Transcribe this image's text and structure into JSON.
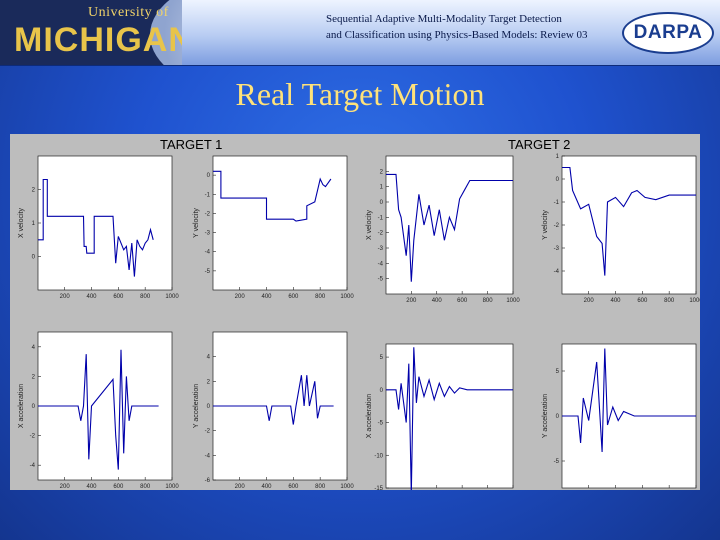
{
  "header": {
    "logo_university": "University of",
    "logo_name": "MICHIGAN",
    "title_line1": "Sequential Adaptive Multi-Modality Target Detection",
    "title_line2": "and Classification using Physics-Based Models: Review 03",
    "darpa": "DARPA"
  },
  "slide_title": "Real Target Motion",
  "colors": {
    "line": "#0000aa",
    "panel_bg": "#ffffff",
    "figure_bg": "#bdbdbd",
    "title": "#ffe27a"
  },
  "chart_data": [
    {
      "type": "line",
      "group": "TARGET 1",
      "ylabel": "X velocity",
      "xlim": [
        1,
        1000
      ],
      "ylim": [
        -1,
        3
      ],
      "xticks": [
        200,
        400,
        600,
        800,
        1000
      ],
      "yticks": [
        2,
        1,
        0
      ],
      "series": [
        {
          "values": [
            [
              1,
              0.5
            ],
            [
              40,
              0.5
            ],
            [
              40,
              2.3
            ],
            [
              70,
              2.3
            ],
            [
              70,
              1.2
            ],
            [
              320,
              1.2
            ],
            [
              340,
              1.2
            ],
            [
              345,
              0.3
            ],
            [
              360,
              0.3
            ],
            [
              365,
              0.1
            ],
            [
              420,
              0.1
            ],
            [
              420,
              1.2
            ],
            [
              560,
              1.2
            ],
            [
              580,
              -0.2
            ],
            [
              600,
              0.6
            ],
            [
              620,
              0.4
            ],
            [
              640,
              0.2
            ],
            [
              660,
              0.3
            ],
            [
              680,
              -0.4
            ],
            [
              700,
              0.4
            ],
            [
              720,
              -0.6
            ],
            [
              740,
              0.5
            ],
            [
              760,
              0.3
            ],
            [
              780,
              0.2
            ],
            [
              800,
              0.4
            ],
            [
              820,
              0.5
            ],
            [
              840,
              0.8
            ],
            [
              860,
              0.5
            ]
          ]
        }
      ]
    },
    {
      "type": "line",
      "group": "TARGET 1",
      "ylabel": "Y velocity",
      "xlim": [
        1,
        1000
      ],
      "ylim": [
        -6,
        1
      ],
      "xticks": [
        200,
        400,
        600,
        800,
        1000
      ],
      "yticks": [
        0,
        -1,
        -2,
        -3,
        -4,
        -5
      ],
      "series": [
        {
          "values": [
            [
              1,
              0.2
            ],
            [
              60,
              0.2
            ],
            [
              60,
              -1.2
            ],
            [
              400,
              -1.2
            ],
            [
              400,
              -2.3
            ],
            [
              600,
              -2.3
            ],
            [
              620,
              -2.4
            ],
            [
              700,
              -2.3
            ],
            [
              700,
              -1.6
            ],
            [
              760,
              -1.4
            ],
            [
              780,
              -0.8
            ],
            [
              800,
              -0.2
            ],
            [
              820,
              -0.5
            ],
            [
              840,
              -0.6
            ],
            [
              860,
              -0.4
            ],
            [
              880,
              -0.2
            ]
          ]
        }
      ]
    },
    {
      "type": "line",
      "group": "TARGET 1",
      "ylabel": "X acceleration",
      "xlim": [
        1,
        1000
      ],
      "ylim": [
        -5,
        5
      ],
      "xticks": [
        200,
        400,
        600,
        800,
        1000
      ],
      "yticks": [
        4,
        2,
        0,
        -2,
        -4
      ],
      "series": [
        {
          "values": [
            [
              1,
              0
            ],
            [
              300,
              0
            ],
            [
              320,
              -1
            ],
            [
              340,
              0
            ],
            [
              360,
              3.5
            ],
            [
              380,
              -3.6
            ],
            [
              400,
              0
            ],
            [
              560,
              1.8
            ],
            [
              580,
              -2
            ],
            [
              600,
              -4.3
            ],
            [
              620,
              3.8
            ],
            [
              640,
              -3.2
            ],
            [
              660,
              2
            ],
            [
              680,
              -1
            ],
            [
              700,
              0
            ],
            [
              900,
              0
            ]
          ]
        }
      ]
    },
    {
      "type": "line",
      "group": "TARGET 1",
      "ylabel": "Y acceleration",
      "xlim": [
        1,
        1000
      ],
      "ylim": [
        -6,
        6
      ],
      "xticks": [
        200,
        400,
        600,
        800,
        1000
      ],
      "yticks": [
        4,
        2,
        0,
        -2,
        -4,
        -6
      ],
      "series": [
        {
          "values": [
            [
              1,
              0
            ],
            [
              400,
              0
            ],
            [
              420,
              -1.2
            ],
            [
              440,
              0
            ],
            [
              580,
              0
            ],
            [
              600,
              -1.5
            ],
            [
              620,
              0
            ],
            [
              660,
              2.5
            ],
            [
              680,
              0
            ],
            [
              700,
              2.5
            ],
            [
              720,
              0
            ],
            [
              760,
              2
            ],
            [
              780,
              -1
            ],
            [
              800,
              0
            ],
            [
              900,
              0
            ]
          ]
        }
      ]
    },
    {
      "type": "line",
      "group": "TARGET 2",
      "ylabel": "X velocity",
      "xlim": [
        1,
        1000
      ],
      "ylim": [
        -6,
        3
      ],
      "xticks": [
        200,
        400,
        600,
        800,
        1000
      ],
      "yticks": [
        2,
        1,
        0,
        -1,
        -2,
        -3,
        -4,
        -5
      ],
      "series": [
        {
          "values": [
            [
              1,
              1.8
            ],
            [
              80,
              1.8
            ],
            [
              100,
              -0.5
            ],
            [
              120,
              -1
            ],
            [
              160,
              -3.5
            ],
            [
              180,
              -1.5
            ],
            [
              200,
              -5.2
            ],
            [
              220,
              -2.5
            ],
            [
              260,
              0.5
            ],
            [
              300,
              -1.5
            ],
            [
              340,
              -0.2
            ],
            [
              380,
              -2.2
            ],
            [
              420,
              -0.5
            ],
            [
              460,
              -2.5
            ],
            [
              500,
              -1
            ],
            [
              540,
              -1.8
            ],
            [
              580,
              0.2
            ],
            [
              620,
              0.8
            ],
            [
              660,
              1.4
            ],
            [
              700,
              1.4
            ],
            [
              760,
              1.4
            ],
            [
              800,
              1.4
            ],
            [
              880,
              1.4
            ],
            [
              1000,
              1.4
            ]
          ]
        }
      ]
    },
    {
      "type": "line",
      "group": "TARGET 2",
      "ylabel": "Y velocity",
      "xlim": [
        1,
        1000
      ],
      "ylim": [
        -5,
        1
      ],
      "xticks": [
        200,
        400,
        600,
        800,
        1000
      ],
      "yticks": [
        1,
        0,
        -1,
        -2,
        -3,
        -4
      ],
      "series": [
        {
          "values": [
            [
              1,
              0.5
            ],
            [
              60,
              0.5
            ],
            [
              80,
              -0.5
            ],
            [
              140,
              -1.3
            ],
            [
              200,
              -1.1
            ],
            [
              260,
              -2.5
            ],
            [
              300,
              -2.8
            ],
            [
              320,
              -4.2
            ],
            [
              340,
              -1
            ],
            [
              400,
              -0.8
            ],
            [
              460,
              -1.2
            ],
            [
              520,
              -0.6
            ],
            [
              560,
              -0.5
            ],
            [
              620,
              -0.8
            ],
            [
              700,
              -0.9
            ],
            [
              800,
              -0.7
            ],
            [
              1000,
              -0.7
            ]
          ]
        }
      ]
    },
    {
      "type": "line",
      "group": "TARGET 2",
      "ylabel": "X acceleration",
      "xlim": [
        1,
        1000
      ],
      "ylim": [
        -15,
        7
      ],
      "xticks": [
        200,
        400,
        600,
        800,
        1000
      ],
      "yticks": [
        5,
        0,
        -5,
        -10,
        -15
      ],
      "series": [
        {
          "values": [
            [
              1,
              0
            ],
            [
              80,
              0
            ],
            [
              100,
              -3
            ],
            [
              120,
              1
            ],
            [
              160,
              -5
            ],
            [
              180,
              4
            ],
            [
              200,
              -16
            ],
            [
              220,
              6.5
            ],
            [
              240,
              -2
            ],
            [
              260,
              2
            ],
            [
              300,
              -1
            ],
            [
              340,
              1.5
            ],
            [
              380,
              -1.5
            ],
            [
              420,
              1
            ],
            [
              460,
              -1
            ],
            [
              500,
              0.5
            ],
            [
              540,
              -0.5
            ],
            [
              580,
              0.3
            ],
            [
              640,
              0
            ],
            [
              1000,
              0
            ]
          ]
        }
      ]
    },
    {
      "type": "line",
      "group": "TARGET 2",
      "ylabel": "Y acceleration",
      "xlim": [
        1,
        1000
      ],
      "ylim": [
        -8,
        8
      ],
      "xticks": [
        200,
        400,
        600,
        800,
        1000
      ],
      "yticks": [
        5,
        0,
        -5
      ],
      "series": [
        {
          "values": [
            [
              1,
              0
            ],
            [
              120,
              0
            ],
            [
              140,
              -3
            ],
            [
              160,
              2
            ],
            [
              200,
              -0.5
            ],
            [
              260,
              6
            ],
            [
              300,
              -4
            ],
            [
              320,
              7.5
            ],
            [
              340,
              -1
            ],
            [
              380,
              1
            ],
            [
              420,
              -0.5
            ],
            [
              460,
              0.5
            ],
            [
              540,
              0
            ],
            [
              1000,
              0
            ]
          ]
        }
      ]
    }
  ]
}
